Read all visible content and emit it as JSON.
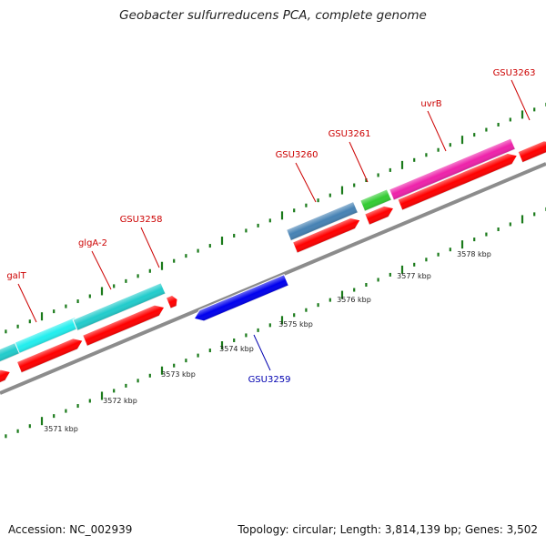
{
  "title": "Geobacter sulfurreducens PCA, complete genome",
  "footer": {
    "accession": "Accession: NC_002939",
    "topology": "Topology: circular; Length: 3,814,139 bp; Genes: 3,502"
  },
  "colors": {
    "backbone": "#8c8c8c",
    "cds": "#ff0000",
    "forward_label": "#cc0000",
    "reverse_label": "#0000b0",
    "tick": "#1a7a1a"
  },
  "features": {
    "forward": [
      {
        "name": "galT",
        "color": "#22eeee"
      },
      {
        "name": "glgA-2",
        "color": "#22cccc"
      },
      {
        "name": "GSU3258",
        "color": "#22cccc"
      },
      {
        "name": "GSU3260",
        "color": "#4682b4"
      },
      {
        "name": "GSU3261",
        "color": "#33cc33"
      },
      {
        "name": "uvrB",
        "color": "#ee22aa"
      },
      {
        "name": "GSU3263",
        "color": "#ff0000"
      }
    ],
    "reverse": [
      {
        "name": "GSU3259",
        "color": "#0000ee"
      }
    ]
  },
  "scale": {
    "labels": [
      "3571 kbp",
      "3572 kbp",
      "3573 kbp",
      "3574 kbp",
      "3575 kbp",
      "3576 kbp",
      "3577 kbp",
      "3578 kbp"
    ]
  }
}
